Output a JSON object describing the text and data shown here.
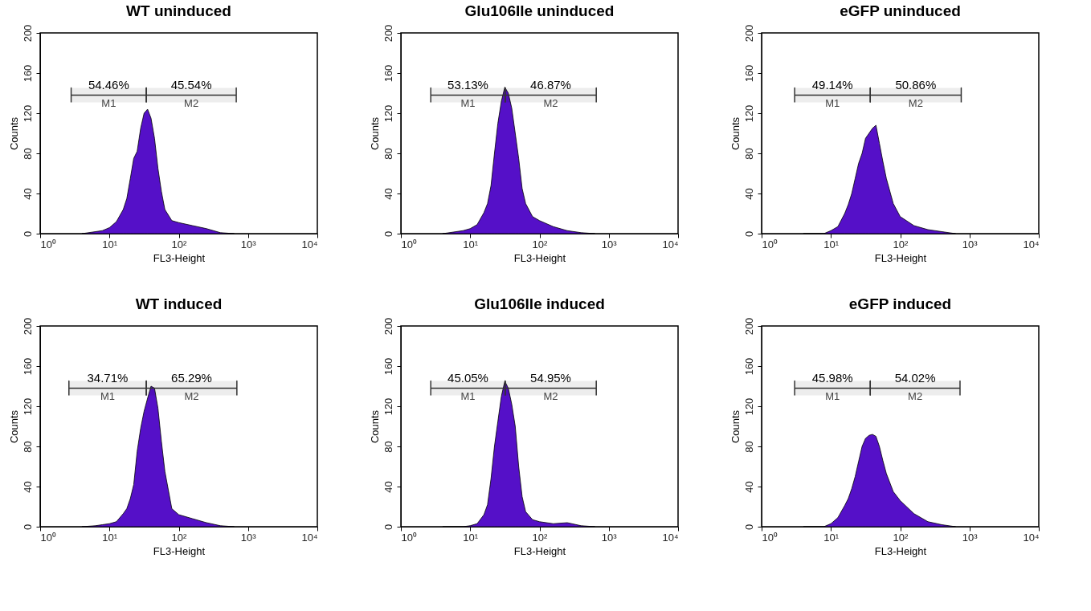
{
  "chart_data": [
    {
      "type": "area",
      "title": "WT uninduced",
      "xlabel": "FL3-Height",
      "ylabel": "Counts",
      "color": "#5510c8",
      "log": "x",
      "xlim": [
        1,
        10000
      ],
      "xticks": [
        {
          "value": 1,
          "label": "10⁰"
        },
        {
          "value": 10,
          "label": "10¹"
        },
        {
          "value": 100,
          "label": "10²"
        },
        {
          "value": 1000,
          "label": "10³"
        },
        {
          "value": 10000,
          "label": "10⁴"
        }
      ],
      "ylim": [
        0,
        200
      ],
      "yticks": [
        0,
        40,
        80,
        120,
        160,
        200
      ],
      "x": [
        4,
        6.3,
        7.9,
        10,
        12.6,
        15.8,
        17.8,
        20,
        22.4,
        25.1,
        28.2,
        31.6,
        35.5,
        39.8,
        44.7,
        50.1,
        56.2,
        63.1,
        79.4,
        100,
        158,
        251,
        398,
        631
      ],
      "values": [
        0,
        2,
        3,
        6,
        12,
        24,
        35,
        55,
        75,
        82,
        105,
        120,
        124,
        115,
        95,
        65,
        42,
        24,
        13,
        11,
        8,
        5,
        1,
        0
      ],
      "bands": [
        {
          "axis": "x",
          "from": 2.8,
          "to": 34,
          "label": "M1"
        },
        {
          "axis": "x",
          "from": 34,
          "to": 676,
          "label": "M2"
        }
      ],
      "annotations": [
        "54.46%",
        "45.54%"
      ]
    },
    {
      "type": "area",
      "title": "Glu106Ile uninduced",
      "xlabel": "FL3-Height",
      "ylabel": "Counts",
      "color": "#5510c8",
      "log": "x",
      "xlim": [
        1,
        10000
      ],
      "xticks": [
        {
          "value": 1,
          "label": "10⁰"
        },
        {
          "value": 10,
          "label": "10¹"
        },
        {
          "value": 100,
          "label": "10²"
        },
        {
          "value": 1000,
          "label": "10³"
        },
        {
          "value": 10000,
          "label": "10⁴"
        }
      ],
      "ylim": [
        0,
        200
      ],
      "yticks": [
        0,
        40,
        80,
        120,
        160,
        200
      ],
      "x": [
        4,
        6.3,
        7.9,
        10,
        12.6,
        15.8,
        17.8,
        20,
        22.4,
        25.1,
        28.2,
        31.6,
        35.5,
        39.8,
        44.7,
        50.1,
        56.2,
        63.1,
        79.4,
        100,
        158,
        251,
        398,
        631
      ],
      "values": [
        0,
        2,
        3,
        5,
        9,
        21,
        30,
        48,
        80,
        110,
        132,
        146,
        140,
        125,
        100,
        75,
        45,
        30,
        17,
        13,
        7,
        3,
        1,
        0
      ],
      "bands": [
        {
          "axis": "x",
          "from": 2.7,
          "to": 32,
          "label": "M1"
        },
        {
          "axis": "x",
          "from": 32,
          "to": 660,
          "label": "M2"
        }
      ],
      "annotations": [
        "53.13%",
        "46.87%"
      ]
    },
    {
      "type": "area",
      "title": "eGFP uninduced",
      "xlabel": "FL3-Height",
      "ylabel": "Counts",
      "color": "#5510c8",
      "log": "x",
      "xlim": [
        1,
        10000
      ],
      "xticks": [
        {
          "value": 1,
          "label": "10⁰"
        },
        {
          "value": 10,
          "label": "10¹"
        },
        {
          "value": 100,
          "label": "10²"
        },
        {
          "value": 1000,
          "label": "10³"
        },
        {
          "value": 10000,
          "label": "10⁴"
        }
      ],
      "ylim": [
        0,
        200
      ],
      "yticks": [
        0,
        40,
        80,
        120,
        160,
        200
      ],
      "x": [
        4,
        6.3,
        7.9,
        10,
        12.6,
        15.8,
        17.8,
        20,
        22.4,
        25.1,
        28.2,
        31.6,
        35.5,
        39.8,
        44.7,
        50.1,
        56.2,
        63.1,
        79.4,
        100,
        158,
        251,
        398,
        631
      ],
      "values": [
        0,
        0,
        0,
        3,
        7,
        20,
        29,
        40,
        55,
        70,
        80,
        95,
        100,
        105,
        108,
        90,
        72,
        55,
        30,
        17,
        8,
        4,
        2,
        0
      ],
      "bands": [
        {
          "axis": "x",
          "from": 3,
          "to": 37,
          "label": "M1"
        },
        {
          "axis": "x",
          "from": 37,
          "to": 760,
          "label": "M2"
        }
      ],
      "annotations": [
        "49.14%",
        "50.86%"
      ]
    },
    {
      "type": "area",
      "title": "WT induced",
      "xlabel": "FL3-Height",
      "ylabel": "Counts",
      "color": "#5510c8",
      "log": "x",
      "xlim": [
        1,
        10000
      ],
      "xticks": [
        {
          "value": 1,
          "label": "10⁰"
        },
        {
          "value": 10,
          "label": "10¹"
        },
        {
          "value": 100,
          "label": "10²"
        },
        {
          "value": 1000,
          "label": "10³"
        },
        {
          "value": 10000,
          "label": "10⁴"
        }
      ],
      "ylim": [
        0,
        200
      ],
      "yticks": [
        0,
        40,
        80,
        120,
        160,
        200
      ],
      "x": [
        4,
        6.3,
        7.9,
        10,
        12.6,
        15.8,
        17.8,
        20,
        22.4,
        25.1,
        28.2,
        31.6,
        35.5,
        39.8,
        44.7,
        50.1,
        56.2,
        63.1,
        79.4,
        100,
        158,
        251,
        398,
        631
      ],
      "values": [
        0,
        1,
        2,
        3,
        5,
        13,
        18,
        28,
        42,
        75,
        98,
        115,
        128,
        140,
        138,
        118,
        85,
        55,
        18,
        12,
        8,
        4,
        1,
        0
      ],
      "bands": [
        {
          "axis": "x",
          "from": 2.6,
          "to": 34,
          "label": "M1"
        },
        {
          "axis": "x",
          "from": 34,
          "to": 690,
          "label": "M2"
        }
      ],
      "annotations": [
        "34.71%",
        "65.29%"
      ]
    },
    {
      "type": "area",
      "title": "Glu106Ile induced",
      "xlabel": "FL3-Height",
      "ylabel": "Counts",
      "color": "#5510c8",
      "log": "x",
      "xlim": [
        1,
        10000
      ],
      "xticks": [
        {
          "value": 1,
          "label": "10⁰"
        },
        {
          "value": 10,
          "label": "10¹"
        },
        {
          "value": 100,
          "label": "10²"
        },
        {
          "value": 1000,
          "label": "10³"
        },
        {
          "value": 10000,
          "label": "10⁴"
        }
      ],
      "ylim": [
        0,
        200
      ],
      "yticks": [
        0,
        40,
        80,
        120,
        160,
        200
      ],
      "x": [
        4,
        6.3,
        7.9,
        10,
        12.6,
        15.8,
        17.8,
        20,
        22.4,
        25.1,
        28.2,
        31.6,
        35.5,
        39.8,
        44.7,
        50.1,
        56.2,
        63.1,
        79.4,
        100,
        158,
        251,
        398,
        631
      ],
      "values": [
        0,
        0,
        0,
        1,
        3,
        12,
        22,
        48,
        80,
        105,
        130,
        145,
        138,
        122,
        100,
        60,
        30,
        15,
        7,
        5,
        3,
        4,
        1,
        0
      ],
      "bands": [
        {
          "axis": "x",
          "from": 2.7,
          "to": 32,
          "label": "M1"
        },
        {
          "axis": "x",
          "from": 32,
          "to": 660,
          "label": "M2"
        }
      ],
      "annotations": [
        "45.05%",
        "54.95%"
      ]
    },
    {
      "type": "area",
      "title": "eGFP induced",
      "xlabel": "FL3-Height",
      "ylabel": "Counts",
      "color": "#5510c8",
      "log": "x",
      "xlim": [
        1,
        10000
      ],
      "xticks": [
        {
          "value": 1,
          "label": "10⁰"
        },
        {
          "value": 10,
          "label": "10¹"
        },
        {
          "value": 100,
          "label": "10²"
        },
        {
          "value": 1000,
          "label": "10³"
        },
        {
          "value": 10000,
          "label": "10⁴"
        }
      ],
      "ylim": [
        0,
        200
      ],
      "yticks": [
        0,
        40,
        80,
        120,
        160,
        200
      ],
      "x": [
        4,
        6.3,
        7.9,
        10,
        12.6,
        15.8,
        17.8,
        20,
        22.4,
        25.1,
        28.2,
        31.6,
        35.5,
        39.8,
        44.7,
        50.1,
        56.2,
        63.1,
        79.4,
        100,
        158,
        251,
        398,
        631
      ],
      "values": [
        0,
        0,
        0,
        3,
        9,
        21,
        28,
        38,
        50,
        65,
        80,
        88,
        91,
        92,
        90,
        80,
        66,
        53,
        35,
        26,
        13,
        5,
        2,
        0
      ],
      "bands": [
        {
          "axis": "x",
          "from": 3,
          "to": 37,
          "label": "M1"
        },
        {
          "axis": "x",
          "from": 37,
          "to": 730,
          "label": "M2"
        }
      ],
      "annotations": [
        "45.98%",
        "54.02%"
      ]
    }
  ]
}
